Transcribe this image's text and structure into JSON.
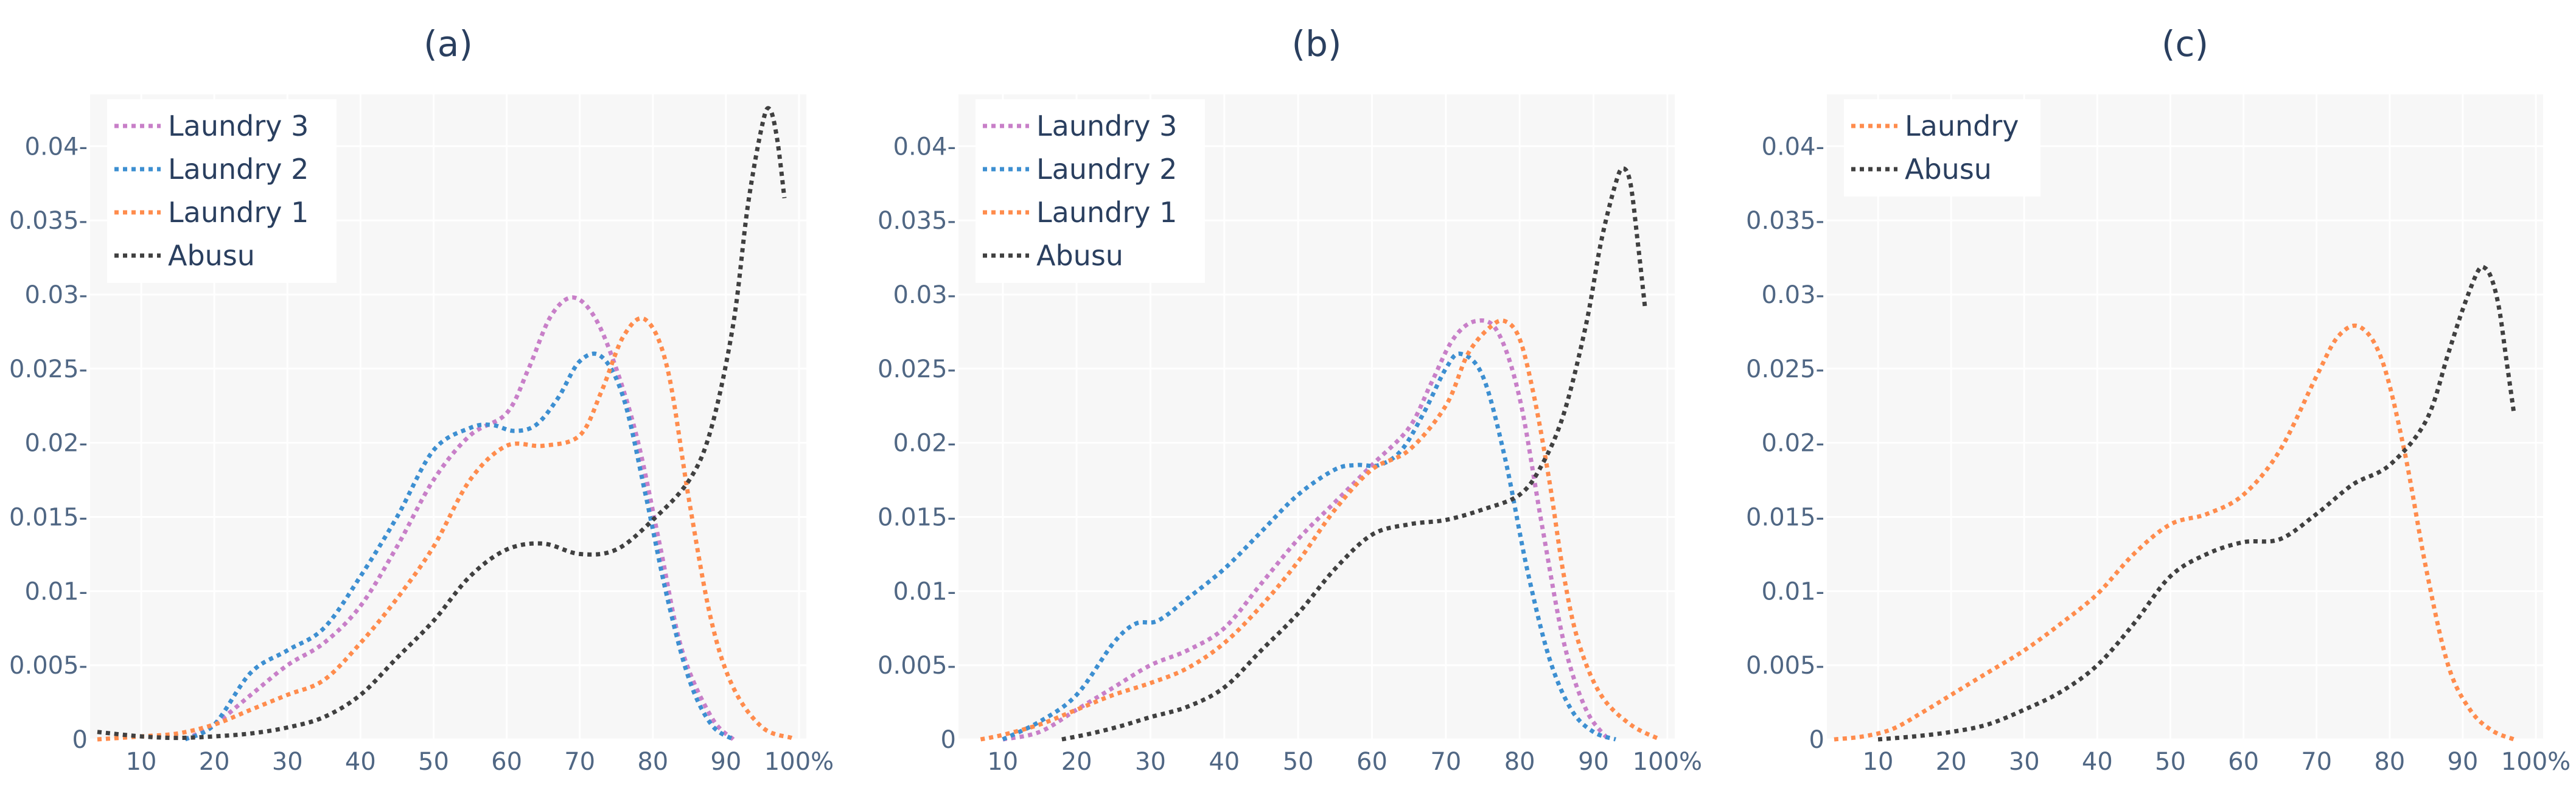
{
  "colors": {
    "plot_bg": "#f7f7f7",
    "grid": "#ffffff",
    "text": "#2a3f5f",
    "tick": "#506784",
    "laundry3": "#c87fc8",
    "laundry2": "#3d8fd1",
    "laundry1": "#ff8c4d",
    "abusu": "#404040"
  },
  "chart_data": [
    {
      "type": "line",
      "title": "(a)",
      "xlabel": "",
      "ylabel": "",
      "xlim": [
        3,
        101
      ],
      "ylim": [
        0,
        0.0435
      ],
      "x_ticks": [
        10,
        20,
        30,
        40,
        50,
        60,
        70,
        80,
        90,
        100
      ],
      "x_tick_labels": [
        "10",
        "20",
        "30",
        "40",
        "50",
        "60",
        "70",
        "80",
        "90",
        "100%"
      ],
      "y_ticks": [
        0,
        0.005,
        0.01,
        0.015,
        0.02,
        0.025,
        0.03,
        0.035,
        0.04
      ],
      "y_tick_labels": [
        "0",
        "0.005-",
        "0.01-",
        "0.015-",
        "0.02-",
        "0.025-",
        "0.03-",
        "0.035-",
        "0.04-"
      ],
      "grid": true,
      "legend": "top-left",
      "series": [
        {
          "name": "Laundry 3",
          "color": "#c87fc8",
          "x": [
            16,
            20,
            25,
            30,
            35,
            40,
            45,
            50,
            55,
            60,
            63,
            66,
            69,
            72,
            75,
            78,
            81,
            84,
            88,
            91
          ],
          "y": [
            0,
            0.001,
            0.003,
            0.005,
            0.0065,
            0.009,
            0.013,
            0.0175,
            0.0205,
            0.022,
            0.025,
            0.0285,
            0.0298,
            0.0285,
            0.025,
            0.02,
            0.013,
            0.006,
            0.0015,
            0
          ]
        },
        {
          "name": "Laundry 2",
          "color": "#3d8fd1",
          "x": [
            16,
            20,
            25,
            30,
            35,
            40,
            45,
            50,
            55,
            58,
            61,
            64,
            67,
            70,
            73,
            76,
            79,
            82,
            85,
            88,
            91
          ],
          "y": [
            0,
            0.001,
            0.0045,
            0.006,
            0.0075,
            0.011,
            0.015,
            0.0195,
            0.021,
            0.0212,
            0.0208,
            0.0212,
            0.023,
            0.0255,
            0.0258,
            0.023,
            0.0165,
            0.0095,
            0.004,
            0.001,
            0
          ]
        },
        {
          "name": "Laundry 1",
          "color": "#ff8c4d",
          "x": [
            4,
            10,
            15,
            20,
            25,
            30,
            35,
            40,
            45,
            50,
            55,
            60,
            65,
            70,
            73,
            76,
            79,
            82,
            85,
            88,
            91,
            95,
            99
          ],
          "y": [
            0,
            0.0002,
            0.0004,
            0.001,
            0.002,
            0.003,
            0.004,
            0.0065,
            0.0095,
            0.013,
            0.0175,
            0.0198,
            0.0198,
            0.0205,
            0.0235,
            0.0272,
            0.0283,
            0.025,
            0.016,
            0.008,
            0.0035,
            0.0008,
            0.0001
          ]
        },
        {
          "name": "Abusu",
          "color": "#404040",
          "x": [
            4,
            10,
            15,
            20,
            25,
            30,
            35,
            40,
            45,
            50,
            55,
            60,
            65,
            70,
            75,
            80,
            85,
            88,
            91,
            93,
            95,
            96,
            97,
            98
          ],
          "y": [
            0.0005,
            0.0002,
            0.0001,
            0.0002,
            0.0004,
            0.0008,
            0.0015,
            0.003,
            0.0055,
            0.008,
            0.011,
            0.0128,
            0.0132,
            0.0125,
            0.0128,
            0.0148,
            0.0175,
            0.021,
            0.028,
            0.036,
            0.0415,
            0.0425,
            0.0405,
            0.0365
          ]
        }
      ]
    },
    {
      "type": "line",
      "title": "(b)",
      "xlabel": "",
      "ylabel": "",
      "xlim": [
        4,
        101
      ],
      "ylim": [
        0,
        0.0435
      ],
      "x_ticks": [
        10,
        20,
        30,
        40,
        50,
        60,
        70,
        80,
        90,
        100
      ],
      "x_tick_labels": [
        "10",
        "20",
        "30",
        "40",
        "50",
        "60",
        "70",
        "80",
        "90",
        "100%"
      ],
      "y_ticks": [
        0,
        0.005,
        0.01,
        0.015,
        0.02,
        0.025,
        0.03,
        0.035,
        0.04
      ],
      "y_tick_labels": [
        "0",
        "0.005-",
        "0.01-",
        "0.015-",
        "0.02-",
        "0.025-",
        "0.03-",
        "0.035-",
        "0.04-"
      ],
      "grid": true,
      "legend": "top-left",
      "series": [
        {
          "name": "Laundry 3",
          "color": "#c87fc8",
          "x": [
            10,
            15,
            20,
            25,
            30,
            35,
            40,
            45,
            50,
            55,
            60,
            65,
            68,
            71,
            74,
            77,
            80,
            83,
            86,
            89,
            92
          ],
          "y": [
            0,
            0.0005,
            0.002,
            0.0035,
            0.005,
            0.006,
            0.0075,
            0.0105,
            0.0135,
            0.016,
            0.0185,
            0.021,
            0.024,
            0.027,
            0.0282,
            0.0275,
            0.023,
            0.0145,
            0.0065,
            0.002,
            0
          ]
        },
        {
          "name": "Laundry 2",
          "color": "#3d8fd1",
          "x": [
            10,
            15,
            20,
            25,
            28,
            31,
            35,
            40,
            45,
            50,
            55,
            58,
            61,
            64,
            67,
            70,
            72,
            75,
            78,
            81,
            84,
            87,
            90,
            93
          ],
          "y": [
            0,
            0.0012,
            0.003,
            0.0065,
            0.0078,
            0.008,
            0.0095,
            0.0115,
            0.014,
            0.0165,
            0.0182,
            0.0185,
            0.0185,
            0.0195,
            0.022,
            0.025,
            0.026,
            0.0245,
            0.019,
            0.0115,
            0.0055,
            0.002,
            0.0005,
            0
          ]
        },
        {
          "name": "Laundry 1",
          "color": "#ff8c4d",
          "x": [
            7,
            10,
            15,
            20,
            25,
            30,
            35,
            40,
            45,
            50,
            55,
            60,
            65,
            70,
            73,
            76,
            78,
            80,
            82,
            84,
            86,
            88,
            91,
            95,
            99
          ],
          "y": [
            0,
            0.0003,
            0.001,
            0.002,
            0.003,
            0.0038,
            0.0048,
            0.0065,
            0.009,
            0.012,
            0.0155,
            0.0182,
            0.0195,
            0.0225,
            0.026,
            0.0278,
            0.0282,
            0.027,
            0.023,
            0.0175,
            0.011,
            0.0065,
            0.003,
            0.001,
            0
          ]
        },
        {
          "name": "Abusu",
          "color": "#404040",
          "x": [
            18,
            22,
            26,
            30,
            35,
            40,
            45,
            50,
            55,
            60,
            65,
            70,
            75,
            80,
            83,
            86,
            89,
            91,
            93,
            94,
            95,
            96,
            97
          ],
          "y": [
            0,
            0.0004,
            0.0009,
            0.0015,
            0.0022,
            0.0035,
            0.006,
            0.0085,
            0.0115,
            0.0138,
            0.0145,
            0.0148,
            0.0155,
            0.0165,
            0.0185,
            0.022,
            0.028,
            0.0335,
            0.0375,
            0.0385,
            0.0375,
            0.0335,
            0.029
          ]
        }
      ]
    },
    {
      "type": "line",
      "title": "(c)",
      "xlabel": "",
      "ylabel": "",
      "xlim": [
        3,
        101
      ],
      "ylim": [
        0,
        0.0435
      ],
      "x_ticks": [
        10,
        20,
        30,
        40,
        50,
        60,
        70,
        80,
        90,
        100
      ],
      "x_tick_labels": [
        "10",
        "20",
        "30",
        "40",
        "50",
        "60",
        "70",
        "80",
        "90",
        "100%"
      ],
      "y_ticks": [
        0,
        0.005,
        0.01,
        0.015,
        0.02,
        0.025,
        0.03,
        0.035,
        0.04
      ],
      "y_tick_labels": [
        "0",
        "0.005-",
        "0.01-",
        "0.015-",
        "0.02-",
        "0.025-",
        "0.03-",
        "0.035-",
        "0.04-"
      ],
      "grid": true,
      "legend": "top-left",
      "series": [
        {
          "name": "Laundry",
          "color": "#ff8c4d",
          "x": [
            4,
            8,
            12,
            16,
            20,
            25,
            30,
            35,
            40,
            45,
            50,
            55,
            60,
            65,
            70,
            73,
            76,
            79,
            82,
            85,
            88,
            91,
            94,
            97
          ],
          "y": [
            0,
            0.0002,
            0.0007,
            0.0018,
            0.003,
            0.0045,
            0.006,
            0.0078,
            0.0098,
            0.0125,
            0.0145,
            0.0152,
            0.0165,
            0.0195,
            0.0245,
            0.0272,
            0.0278,
            0.0255,
            0.0195,
            0.0115,
            0.005,
            0.002,
            0.0006,
            0
          ]
        },
        {
          "name": "Abusu",
          "color": "#404040",
          "x": [
            10,
            15,
            20,
            25,
            30,
            35,
            40,
            45,
            50,
            55,
            60,
            65,
            70,
            75,
            80,
            85,
            88,
            90,
            92,
            93,
            94,
            95,
            96,
            97
          ],
          "y": [
            0,
            0.0002,
            0.0005,
            0.001,
            0.002,
            0.0032,
            0.005,
            0.0078,
            0.011,
            0.0125,
            0.0133,
            0.0135,
            0.0152,
            0.0172,
            0.0185,
            0.0215,
            0.026,
            0.029,
            0.0315,
            0.0318,
            0.031,
            0.029,
            0.0255,
            0.022
          ]
        }
      ]
    }
  ]
}
